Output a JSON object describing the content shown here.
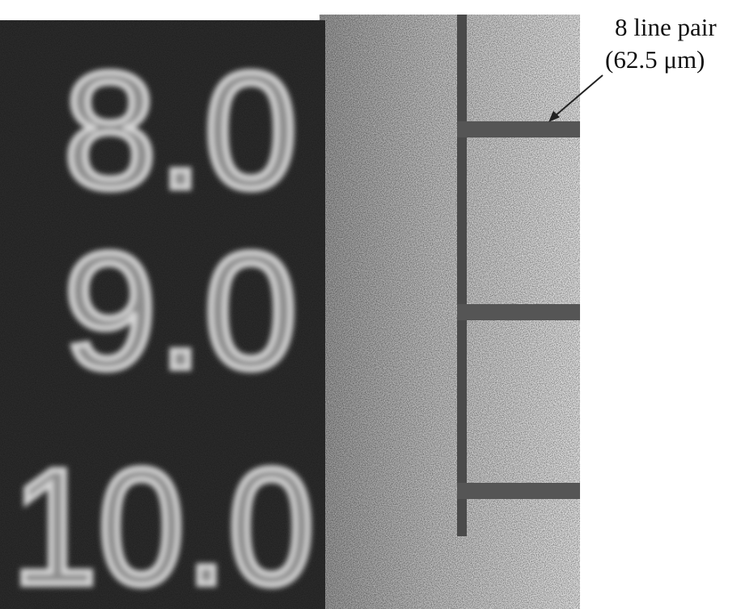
{
  "image": {
    "labels": [
      "8.0",
      "9.0",
      "10.0"
    ]
  },
  "annotation": {
    "line1": "8 line pair",
    "line2": "(62.5 μm)"
  }
}
